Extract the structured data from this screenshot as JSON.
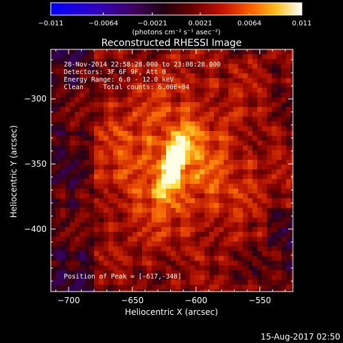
{
  "chart_data": {
    "type": "heatmap",
    "title": "Reconstructed RHESSI Image",
    "xlabel": "Heliocentric X (arcsec)",
    "ylabel": "Heliocentric Y (arcsec)",
    "xlim": [
      -714,
      -524
    ],
    "ylim": [
      -448,
      -262
    ],
    "xticks": [
      -700,
      -650,
      -600,
      -550
    ],
    "yticks": [
      -300,
      -350,
      -400
    ],
    "xtick_labels": [
      "−700",
      "−650",
      "−600",
      "−550"
    ],
    "ytick_labels": [
      "−300",
      "−350",
      "−400"
    ],
    "colorbar": {
      "min": -0.011,
      "max": 0.011,
      "ticks": [
        -0.011,
        -0.0064,
        -0.0021,
        0.0021,
        0.0064,
        0.011
      ],
      "tick_labels": [
        "−0.011",
        "−0.0064",
        "−0.0021",
        "0.0021",
        "0.0064",
        "0.011"
      ],
      "units_label": "(photons cm⁻² s⁻¹ asec⁻²)"
    },
    "peak_position": [
      -617,
      -348
    ],
    "annotations": [
      "28-Nov-2014 22:58:28.000 to 23:08:28.000",
      "Detectors: 3F 6F 9F, Att 0",
      "Energy Range: 6.0 - 12.0 keV",
      "Clean     Total counts: 6.00E+04"
    ],
    "peak_label": "Position of Peak = [-617,-348]",
    "timestamp": "15-Aug-2017 02:50",
    "colors": {
      "background": "#000000",
      "low": "#1a00ff",
      "mid": "#8a0000",
      "high": "#ffffff"
    }
  }
}
